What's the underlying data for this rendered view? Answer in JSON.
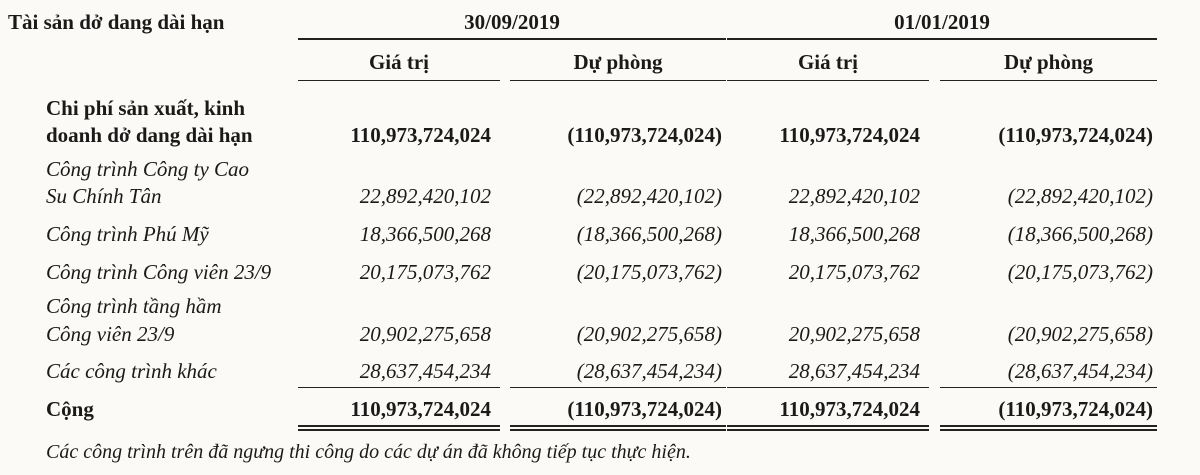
{
  "header": {
    "section_title": "Tài sản dở dang dài hạn",
    "periods": [
      "30/09/2019",
      "01/01/2019"
    ],
    "columns": [
      "Giá trị",
      "Dự phòng",
      "Giá trị",
      "Dự phòng"
    ]
  },
  "rows": [
    {
      "label_lines": [
        "Chi phí sản xuất, kinh",
        "doanh dở dang dài hạn"
      ],
      "values": [
        "110,973,724,024",
        "(110,973,724,024)",
        "110,973,724,024",
        "(110,973,724,024)"
      ]
    },
    {
      "label_lines": [
        "Công trình Công ty Cao",
        "Su Chính Tân"
      ],
      "values": [
        "22,892,420,102",
        "(22,892,420,102)",
        "22,892,420,102",
        "(22,892,420,102)"
      ]
    },
    {
      "label_lines": [
        "Công trình Phú Mỹ"
      ],
      "values": [
        "18,366,500,268",
        "(18,366,500,268)",
        "18,366,500,268",
        "(18,366,500,268)"
      ]
    },
    {
      "label_lines": [
        "Công trình Công viên 23/9"
      ],
      "values": [
        "20,175,073,762",
        "(20,175,073,762)",
        "20,175,073,762",
        "(20,175,073,762)"
      ]
    },
    {
      "label_lines": [
        "Công trình tầng hầm",
        "Công viên 23/9"
      ],
      "values": [
        "20,902,275,658",
        "(20,902,275,658)",
        "20,902,275,658",
        "(20,902,275,658)"
      ]
    },
    {
      "label_lines": [
        "Các công trình khác"
      ],
      "values": [
        "28,637,454,234",
        "(28,637,454,234)",
        "28,637,454,234",
        "(28,637,454,234)"
      ]
    }
  ],
  "total": {
    "label": "Cộng",
    "values": [
      "110,973,724,024",
      "(110,973,724,024)",
      "110,973,724,024",
      "(110,973,724,024)"
    ]
  },
  "footnote": "Các công trình trên đã ngưng thi công do các dự án đã không tiếp tục thực hiện."
}
